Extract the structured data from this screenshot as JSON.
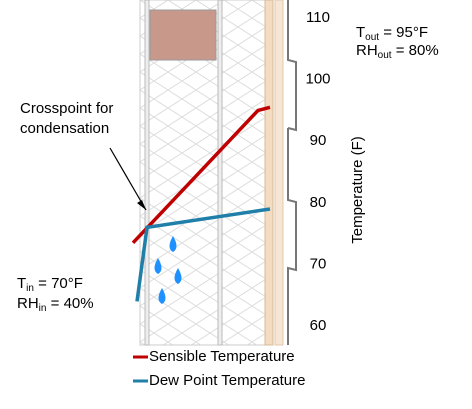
{
  "chart_data": {
    "type": "line",
    "y_label": "Temperature (F)",
    "ylim": [
      60,
      110
    ],
    "yticks": [
      60,
      70,
      80,
      90,
      100,
      110
    ],
    "series": [
      {
        "name": "Sensible Temperature",
        "color": "#c00000",
        "values": [
          73.5,
          95,
          95.5
        ]
      },
      {
        "name": "Dew Point Temperature",
        "color": "#1f7fa8",
        "values": [
          64,
          76,
          79
        ]
      }
    ],
    "annotations": {
      "outside": [
        {
          "symbol": "T",
          "subscript": "out",
          "text": " = 95°F"
        },
        {
          "symbol": "RH",
          "subscript": "out",
          "text": " = 80%"
        }
      ],
      "inside": [
        {
          "symbol": "T",
          "subscript": "in",
          "text": " = 70°F"
        },
        {
          "symbol": "RH",
          "subscript": "in",
          "text": " = 40%"
        }
      ],
      "crosspoint": [
        "Crosspoint for",
        "condensation"
      ]
    }
  }
}
